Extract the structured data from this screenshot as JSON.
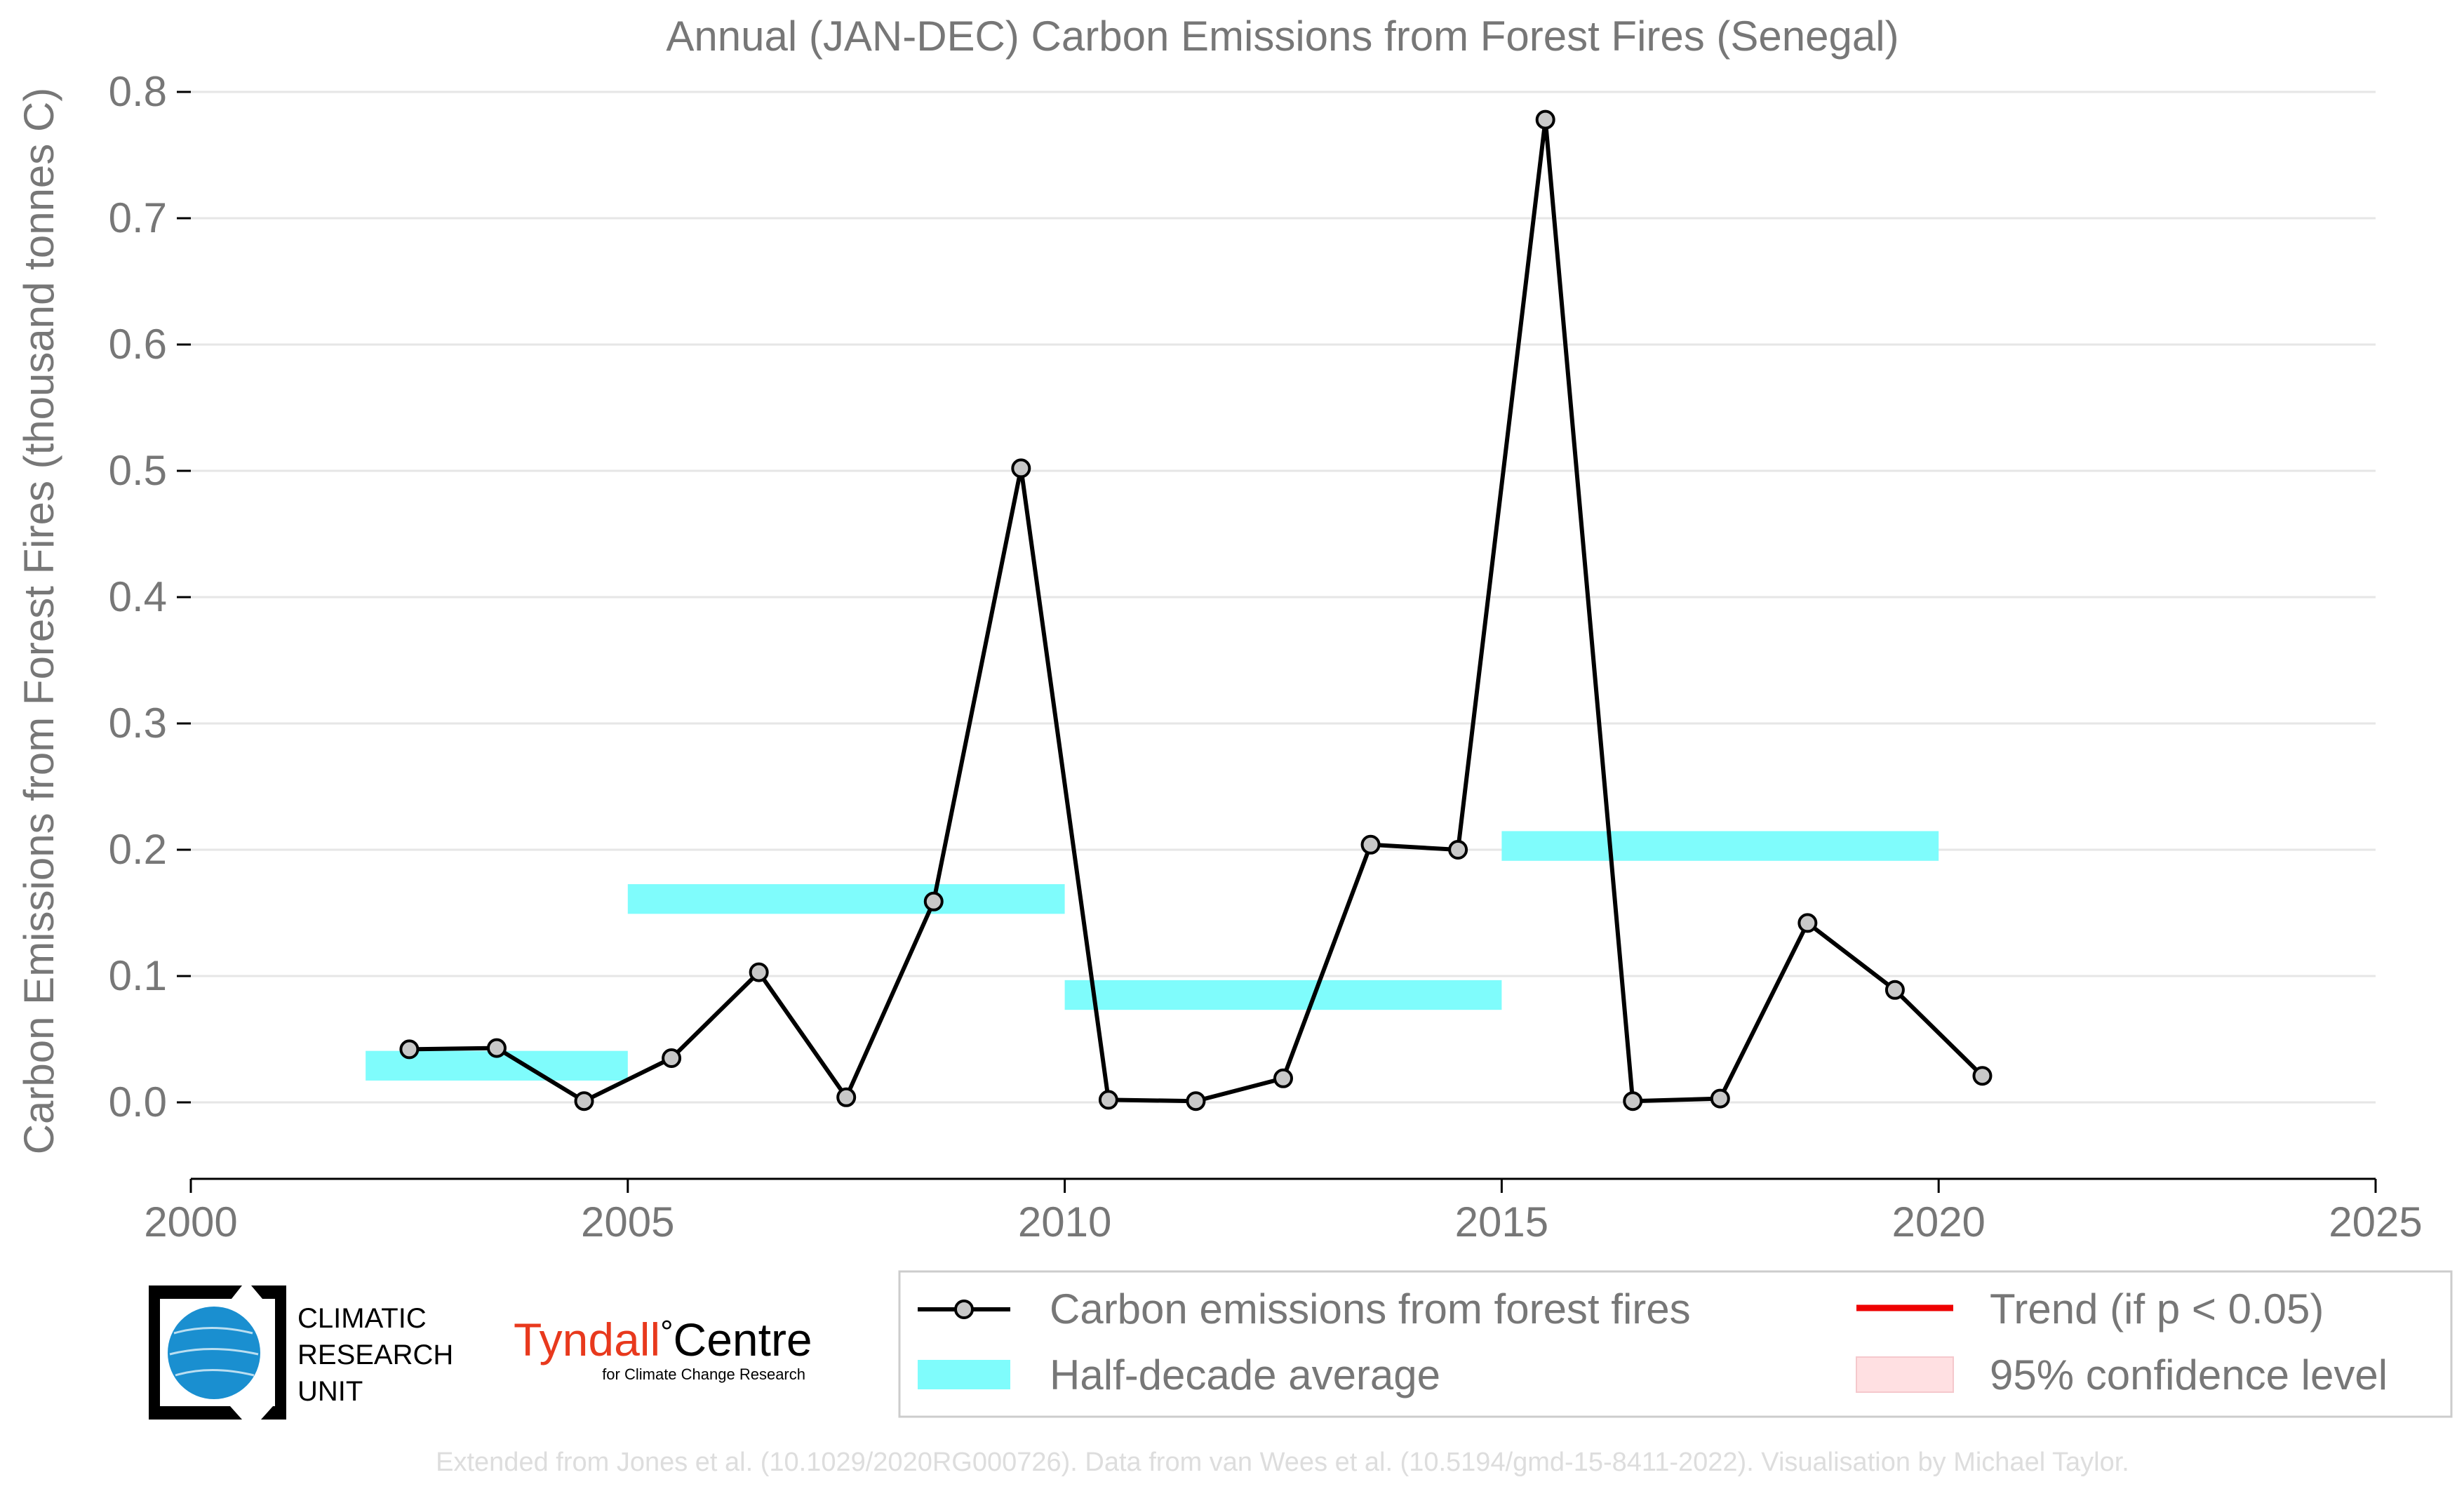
{
  "chart_data": {
    "type": "line",
    "title": "Annual (JAN-DEC) Carbon Emissions from Forest Fires (Senegal)",
    "xlabel": "",
    "ylabel": "Carbon Emissions from Forest Fires (thousand tonnes C)",
    "xlim": [
      2000,
      2025
    ],
    "ylim": [
      -0.06,
      0.8
    ],
    "x_ticks": [
      2000,
      2005,
      2010,
      2015,
      2020,
      2025
    ],
    "y_ticks": [
      0.0,
      0.1,
      0.2,
      0.3,
      0.4,
      0.5,
      0.6,
      0.7,
      0.8
    ],
    "grid": "horizontal",
    "series": [
      {
        "name": "Carbon emissions from forest fires",
        "color": "#000000",
        "marker_color": "#c8c8c8",
        "points": [
          [
            2002.5,
            0.042
          ],
          [
            2003.5,
            0.043
          ],
          [
            2004.5,
            0.001
          ],
          [
            2005.5,
            0.035
          ],
          [
            2006.5,
            0.103
          ],
          [
            2007.5,
            0.004
          ],
          [
            2008.5,
            0.159
          ],
          [
            2009.5,
            0.502
          ],
          [
            2010.5,
            0.002
          ],
          [
            2011.5,
            0.001
          ],
          [
            2012.5,
            0.019
          ],
          [
            2013.5,
            0.204
          ],
          [
            2014.5,
            0.2
          ],
          [
            2015.5,
            0.778
          ],
          [
            2016.5,
            0.001
          ],
          [
            2017.5,
            0.003
          ],
          [
            2018.5,
            0.142
          ],
          [
            2019.5,
            0.089
          ],
          [
            2020.5,
            0.021
          ]
        ]
      }
    ],
    "half_decade_average": {
      "name": "Half-decade average",
      "color": "#7ffcfc",
      "segments": [
        {
          "x0": 2002,
          "x1": 2005,
          "y": 0.029
        },
        {
          "x0": 2005,
          "x1": 2010,
          "y": 0.161
        },
        {
          "x0": 2010,
          "x1": 2015,
          "y": 0.085
        },
        {
          "x0": 2015,
          "x1": 2020,
          "y": 0.203
        }
      ]
    },
    "legend": {
      "placement": "bottom-right",
      "entries": [
        {
          "label": "Carbon emissions from forest fires",
          "kind": "line-marker",
          "color": "#000000"
        },
        {
          "label": "Trend (if p < 0.05)",
          "kind": "line",
          "color": "#ee0000"
        },
        {
          "label": "Half-decade average",
          "kind": "band",
          "color": "#7ffcfc"
        },
        {
          "label": "95% confidence level",
          "kind": "patch",
          "color": "#ffe0e2"
        }
      ]
    }
  },
  "logos": {
    "cru_lines": [
      "CLIMATIC",
      "RESEARCH",
      "UNIT"
    ],
    "tyndall_word": "Tyndall",
    "tyndall_degree": "°",
    "tyndall_centre": "Centre",
    "tyndall_sub": "for Climate Change Research"
  },
  "footer": "Extended from Jones et al. (10.1029/2020RG000726). Data from van Wees et al. (10.5194/gmd-15-8411-2022). Visualisation by Michael Taylor."
}
